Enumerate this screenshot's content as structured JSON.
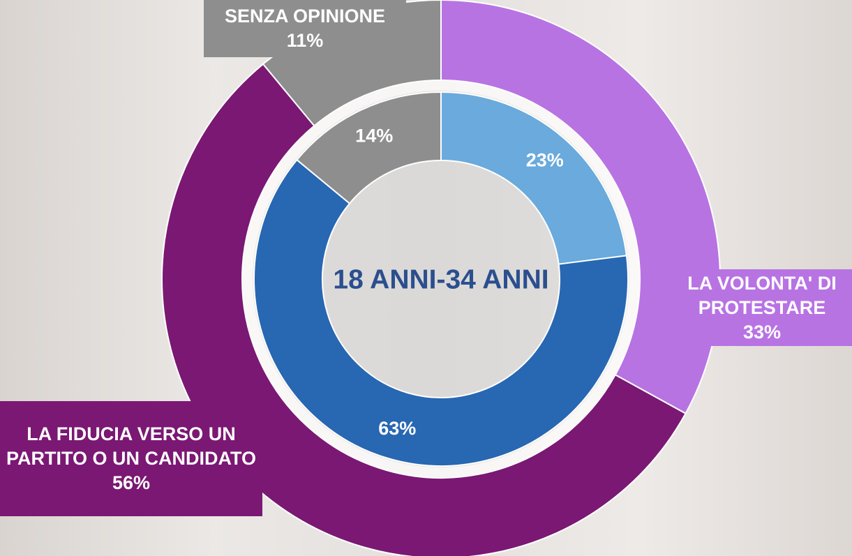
{
  "chart_data": {
    "type": "donut",
    "center_label": "18 ANNI-34 ANNI",
    "series": [
      {
        "categories": [
          "LA VOLONTA' DI PROTESTARE",
          "LA FIDUCIA VERSO UN PARTITO O UN CANDIDATO",
          "SENZA OPINIONE"
        ],
        "values": [
          33,
          56,
          11
        ],
        "value_labels": [
          "33%",
          "56%",
          "11%"
        ],
        "colors": [
          "#b873e3",
          "#7a1873",
          "#8e8e8e"
        ]
      },
      {
        "values": [
          23,
          63,
          14
        ],
        "value_labels": [
          "23%",
          "63%",
          "14%"
        ],
        "colors": [
          "#6aaadc",
          "#2867b2",
          "#8e8e8e"
        ]
      }
    ]
  }
}
